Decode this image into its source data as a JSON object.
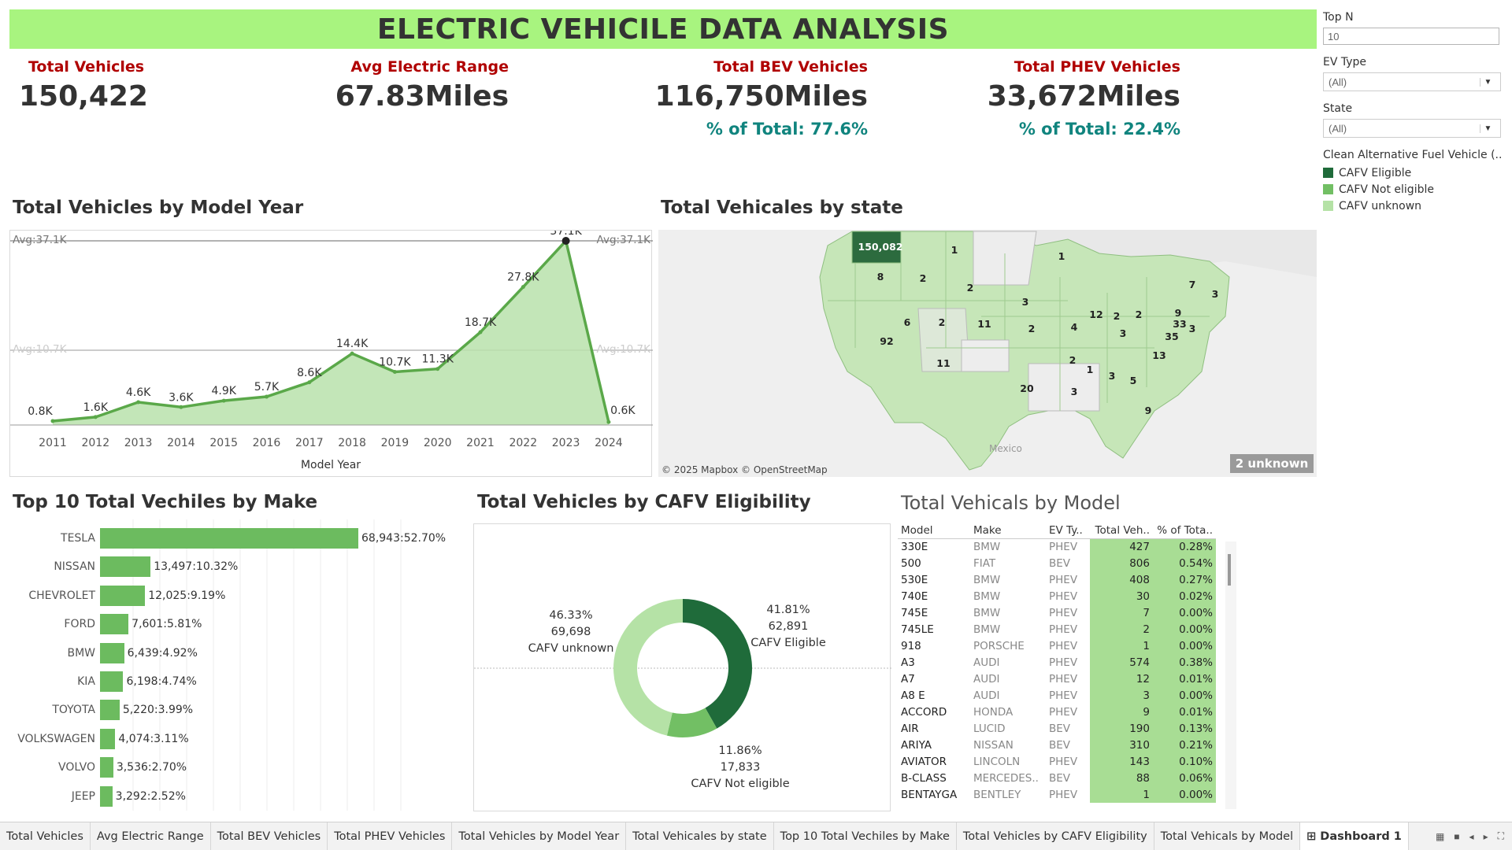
{
  "title": "ELECTRIC VEHICILE DATA ANALYSIS",
  "kpis": [
    {
      "label": "Total Vehicles",
      "value": "150,422",
      "pct": ""
    },
    {
      "label": "Avg Electric Range",
      "value": "67.83Miles",
      "pct": ""
    },
    {
      "label": "Total BEV Vehicles",
      "value": "116,750Miles",
      "pct": "% of Total: 77.6%"
    },
    {
      "label": "Total PHEV Vehicles",
      "value": "33,672Miles",
      "pct": "% of Total: 22.4%"
    }
  ],
  "filters": {
    "top_n_label": "Top N",
    "top_n_value": "10",
    "ev_type_label": "EV Type",
    "ev_type_value": "(All)",
    "state_label": "State",
    "state_value": "(All)",
    "legend_title": "Clean Alternative Fuel Vehicle (..",
    "legend_items": [
      {
        "label": "CAFV Eligible",
        "color": "#1f6b3a"
      },
      {
        "label": "CAFV Not eligible",
        "color": "#72bf64"
      },
      {
        "label": "CAFV unknown",
        "color": "#b5e2a6"
      }
    ]
  },
  "sections": {
    "model_year": "Total Vehicles by Model Year",
    "state": "Total Vehicales by state",
    "make": "Top 10 Total Vechiles by Make",
    "cafv": "Total Vehicles by CAFV Eligibility",
    "model": "Total Vehicals by Model"
  },
  "year_chart": {
    "avg_label_top_left": "Avg:37.1K",
    "avg_label_top_right": "Avg:37.1K",
    "avg_label_mid_left": "Avg:10.7K",
    "avg_label_mid_right": "Avg:10.7K",
    "xlabel": "Model Year"
  },
  "map": {
    "credit": "© 2025 Mapbox © OpenStreetMap",
    "unknown_badge": "2 unknown",
    "country_label": "Mexico",
    "state_values": [
      {
        "label": "150,082"
      },
      {
        "label": "1"
      },
      {
        "label": "1"
      },
      {
        "label": "8"
      },
      {
        "label": "2"
      },
      {
        "label": "2"
      },
      {
        "label": "3"
      },
      {
        "label": "7"
      },
      {
        "label": "3"
      },
      {
        "label": "6"
      },
      {
        "label": "2"
      },
      {
        "label": "11"
      },
      {
        "label": "2"
      },
      {
        "label": "4"
      },
      {
        "label": "12"
      },
      {
        "label": "2"
      },
      {
        "label": "2"
      },
      {
        "label": "9"
      },
      {
        "label": "92"
      },
      {
        "label": "3"
      },
      {
        "label": "33"
      },
      {
        "label": "35"
      },
      {
        "label": "3"
      },
      {
        "label": "11"
      },
      {
        "label": "13"
      },
      {
        "label": "2"
      },
      {
        "label": "1"
      },
      {
        "label": "3"
      },
      {
        "label": "5"
      },
      {
        "label": "20"
      },
      {
        "label": "3"
      },
      {
        "label": "9"
      }
    ]
  },
  "table": {
    "headers": [
      "Model",
      "Make",
      "EV Ty..",
      "Total Veh..",
      "% of Tota.."
    ],
    "rows": [
      [
        "330E",
        "BMW",
        "PHEV",
        "427",
        "0.28%"
      ],
      [
        "500",
        "FIAT",
        "BEV",
        "806",
        "0.54%"
      ],
      [
        "530E",
        "BMW",
        "PHEV",
        "408",
        "0.27%"
      ],
      [
        "740E",
        "BMW",
        "PHEV",
        "30",
        "0.02%"
      ],
      [
        "745E",
        "BMW",
        "PHEV",
        "7",
        "0.00%"
      ],
      [
        "745LE",
        "BMW",
        "PHEV",
        "2",
        "0.00%"
      ],
      [
        "918",
        "PORSCHE",
        "PHEV",
        "1",
        "0.00%"
      ],
      [
        "A3",
        "AUDI",
        "PHEV",
        "574",
        "0.38%"
      ],
      [
        "A7",
        "AUDI",
        "PHEV",
        "12",
        "0.01%"
      ],
      [
        "A8 E",
        "AUDI",
        "PHEV",
        "3",
        "0.00%"
      ],
      [
        "ACCORD",
        "HONDA",
        "PHEV",
        "9",
        "0.01%"
      ],
      [
        "AIR",
        "LUCID",
        "BEV",
        "190",
        "0.13%"
      ],
      [
        "ARIYA",
        "NISSAN",
        "BEV",
        "310",
        "0.21%"
      ],
      [
        "AVIATOR",
        "LINCOLN",
        "PHEV",
        "143",
        "0.10%"
      ],
      [
        "B-CLASS",
        "MERCEDES..",
        "BEV",
        "88",
        "0.06%"
      ],
      [
        "BENTAYGA",
        "BENTLEY",
        "PHEV",
        "1",
        "0.00%"
      ]
    ]
  },
  "tabs": [
    "Total Vehicles",
    "Avg Electric Range",
    "Total BEV Vehicles",
    "Total PHEV Vehicles",
    "Total Vehicles by Model Year",
    "Total Vehicales by state",
    "Top 10 Total Vechiles by Make",
    "Total Vehicles by CAFV Eligibility",
    "Total Vehicals by Model",
    "Dashboard 1"
  ],
  "chart_data": [
    {
      "type": "area",
      "title": "Total Vehicles by Model Year",
      "xlabel": "Model Year",
      "ylabel": "",
      "x": [
        "2011",
        "2012",
        "2013",
        "2014",
        "2015",
        "2016",
        "2017",
        "2018",
        "2019",
        "2020",
        "2021",
        "2022",
        "2023",
        "2024"
      ],
      "values": [
        0.8,
        1.6,
        4.6,
        3.6,
        4.9,
        5.7,
        8.6,
        14.4,
        10.7,
        11.3,
        18.7,
        27.8,
        37.1,
        0.6
      ],
      "labels": [
        "0.8K",
        "1.6K",
        "4.6K",
        "3.6K",
        "4.9K",
        "5.7K",
        "8.6K",
        "14.4K",
        "10.7K",
        "11.3K",
        "18.7K",
        "27.8K",
        "37.1K",
        "0.6K"
      ],
      "ylim": [
        0,
        40
      ],
      "reference_lines": [
        37.1,
        10.7
      ],
      "color": "#5aa849"
    },
    {
      "type": "bar",
      "title": "Top 10 Total Vechiles by Make",
      "categories": [
        "TESLA",
        "NISSAN",
        "CHEVROLET",
        "FORD",
        "BMW",
        "KIA",
        "TOYOTA",
        "VOLKSWAGEN",
        "VOLVO",
        "JEEP"
      ],
      "values": [
        68943,
        13497,
        12025,
        7601,
        6439,
        6198,
        5220,
        4074,
        3536,
        3292
      ],
      "labels": [
        "68,943:52.70%",
        "13,497:10.32%",
        "12,025:9.19%",
        "7,601:5.81%",
        "6,439:4.92%",
        "6,198:4.74%",
        "5,220:3.99%",
        "4,074:3.11%",
        "3,536:2.70%",
        "3,292:2.52%"
      ],
      "color": "#6cbb5f"
    },
    {
      "type": "pie",
      "title": "Total Vehicles by CAFV Eligibility",
      "categories": [
        "CAFV Eligible",
        "CAFV Not eligible",
        "CAFV unknown"
      ],
      "values": [
        62891,
        17833,
        69698
      ],
      "percent_labels": [
        "41.81%",
        "11.86%",
        "46.33%"
      ],
      "value_labels": [
        "62,891",
        "17,833",
        "69,698"
      ],
      "colors": [
        "#1f6b3a",
        "#72bf64",
        "#b5e2a6"
      ]
    }
  ]
}
